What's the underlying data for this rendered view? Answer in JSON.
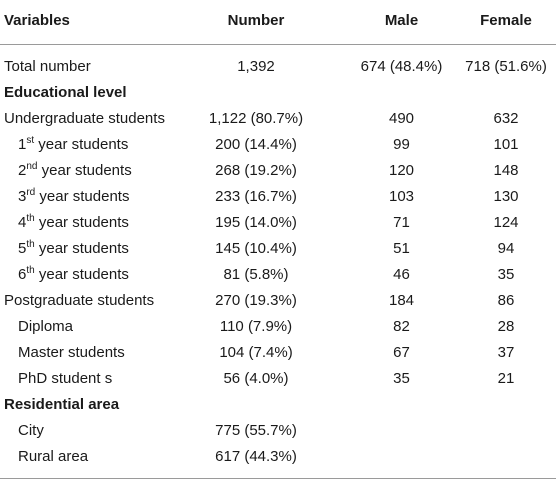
{
  "header": {
    "variables": "Variables",
    "number": "Number",
    "male": "Male",
    "female": "Female"
  },
  "rows": [
    {
      "label": "Total number",
      "number": "1,392",
      "male": "674 (48.4%)",
      "female": "718 (51.6%)"
    },
    {
      "label": "Educational level"
    },
    {
      "label": "Undergraduate students",
      "number": "1,122 (80.7%)",
      "male": "490",
      "female": "632"
    },
    {
      "ord": "1",
      "sup": "st",
      "rest": " year students",
      "number": "200 (14.4%)",
      "male": "99",
      "female": "101"
    },
    {
      "ord": "2",
      "sup": "nd",
      "rest": " year students",
      "number": "268 (19.2%)",
      "male": "120",
      "female": "148"
    },
    {
      "ord": "3",
      "sup": "rd",
      "rest": " year students",
      "number": "233 (16.7%)",
      "male": "103",
      "female": "130"
    },
    {
      "ord": "4",
      "sup": "th",
      "rest": " year students",
      "number": "195 (14.0%)",
      "male": "71",
      "female": "124"
    },
    {
      "ord": "5",
      "sup": "th",
      "rest": " year students",
      "number": "145 (10.4%)",
      "male": "51",
      "female": "94"
    },
    {
      "ord": "6",
      "sup": "th",
      "rest": " year students",
      "number": "81 (5.8%)",
      "male": "46",
      "female": "35"
    },
    {
      "label": "Postgraduate students",
      "number": "270 (19.3%)",
      "male": "184",
      "female": "86"
    },
    {
      "label": "Diploma",
      "number": "110 (7.9%)",
      "male": "82",
      "female": "28"
    },
    {
      "label": "Master students",
      "number": "104 (7.4%)",
      "male": "67",
      "female": "37"
    },
    {
      "label": "PhD student s",
      "number": "56 (4.0%)",
      "male": "35",
      "female": "21"
    },
    {
      "label": "Residential area"
    },
    {
      "label": "City",
      "number": "775 (55.7%)"
    },
    {
      "label": "Rural area",
      "number": "617 (44.3%)"
    }
  ]
}
